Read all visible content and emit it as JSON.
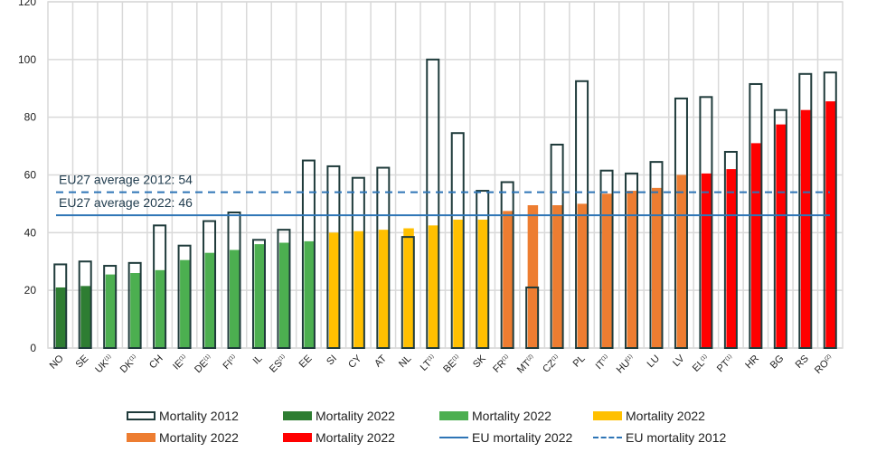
{
  "chart_data": {
    "type": "bar",
    "title": "",
    "xlabel": "",
    "ylabel": "",
    "ylim": [
      0,
      120
    ],
    "yticks": [
      "0",
      "20",
      "40",
      "60",
      "80",
      "100",
      "120"
    ],
    "grid": true,
    "categories": [
      "NO",
      "SE",
      "UK(1)",
      "DK(1)",
      "CH",
      "IE(1)",
      "DE(1)",
      "FI(1)",
      "IL",
      "ES(1)",
      "EE",
      "SI",
      "CY",
      "AT",
      "NL",
      "LT(1)",
      "BE(1)",
      "SK",
      "FR(1)",
      "MT(2)",
      "CZ(1)",
      "PL",
      "IT(1)",
      "HU(1)",
      "LU",
      "LV",
      "EL(1)",
      "PT(1)",
      "HR",
      "BG",
      "RS",
      "RO(2)"
    ],
    "category_labels": [
      {
        "base": "NO",
        "sup": ""
      },
      {
        "base": "SE",
        "sup": ""
      },
      {
        "base": "UK",
        "sup": "(1)"
      },
      {
        "base": "DK",
        "sup": "(1)"
      },
      {
        "base": "CH",
        "sup": ""
      },
      {
        "base": "IE",
        "sup": "(1)"
      },
      {
        "base": "DE",
        "sup": "(1)"
      },
      {
        "base": "FI",
        "sup": "(1)"
      },
      {
        "base": "IL",
        "sup": ""
      },
      {
        "base": "ES",
        "sup": "(1)"
      },
      {
        "base": "EE",
        "sup": ""
      },
      {
        "base": "SI",
        "sup": ""
      },
      {
        "base": "CY",
        "sup": ""
      },
      {
        "base": "AT",
        "sup": ""
      },
      {
        "base": "NL",
        "sup": ""
      },
      {
        "base": "LT",
        "sup": "(1)"
      },
      {
        "base": "BE",
        "sup": "(1)"
      },
      {
        "base": "SK",
        "sup": ""
      },
      {
        "base": "FR",
        "sup": "(1)"
      },
      {
        "base": "MT",
        "sup": "(2)"
      },
      {
        "base": "CZ",
        "sup": "(1)"
      },
      {
        "base": "PL",
        "sup": ""
      },
      {
        "base": "IT",
        "sup": "(1)"
      },
      {
        "base": "HU",
        "sup": "(1)"
      },
      {
        "base": "LU",
        "sup": ""
      },
      {
        "base": "LV",
        "sup": ""
      },
      {
        "base": "EL",
        "sup": "(1)"
      },
      {
        "base": "PT",
        "sup": "(1)"
      },
      {
        "base": "HR",
        "sup": ""
      },
      {
        "base": "BG",
        "sup": ""
      },
      {
        "base": "RS",
        "sup": ""
      },
      {
        "base": "RO",
        "sup": "(2)"
      }
    ],
    "series": [
      {
        "name": "Mortality 2012",
        "style": "outline",
        "values": [
          29,
          30,
          28.5,
          29.5,
          42.5,
          35.5,
          44,
          47,
          37.5,
          41,
          65,
          63,
          59,
          62.5,
          38.5,
          100,
          74.5,
          54.5,
          57.5,
          21,
          70.5,
          92.5,
          61.5,
          60.5,
          64.5,
          86.5,
          87,
          68,
          91.5,
          82.5,
          95,
          95.5
        ]
      },
      {
        "name": "Mortality 2022",
        "style": "fill",
        "values": [
          21,
          21.5,
          25.5,
          26,
          27,
          30.5,
          33,
          34,
          36,
          36.5,
          37,
          40,
          40.5,
          41,
          41.5,
          42.5,
          44.5,
          44.5,
          47.5,
          49.5,
          49.5,
          50,
          53.5,
          54.5,
          55.5,
          60,
          60.5,
          62,
          71,
          77.5,
          82.5,
          85.5
        ],
        "color_groups": [
          "dark-green",
          "dark-green",
          "green",
          "green",
          "green",
          "green",
          "green",
          "green",
          "green",
          "green",
          "green",
          "yellow",
          "yellow",
          "yellow",
          "yellow",
          "yellow",
          "yellow",
          "yellow",
          "orange",
          "orange",
          "orange",
          "orange",
          "orange",
          "orange",
          "orange",
          "orange",
          "red",
          "red",
          "red",
          "red",
          "red",
          "red"
        ]
      }
    ],
    "reference_lines": [
      {
        "name": "EU mortality 2022",
        "value": 46,
        "style": "solid",
        "label": "EU27 average 2022: 46"
      },
      {
        "name": "EU mortality 2012",
        "value": 54,
        "style": "dashed",
        "label": "EU27 average 2012: 54"
      }
    ],
    "colors": {
      "dark-green": "#2e7d32",
      "green": "#4caf50",
      "yellow": "#ffc000",
      "orange": "#ed7d31",
      "red": "#ff0000",
      "outline": "#1f3b3b",
      "reference": "#2e75b6",
      "grid": "#d9d9d9"
    },
    "legend": {
      "placement": "bottom",
      "rows": [
        [
          {
            "label": "Mortality 2012",
            "swatch": "outline"
          },
          {
            "label": "Mortality 2022",
            "swatch": "dark-green"
          },
          {
            "label": "Mortality 2022",
            "swatch": "green"
          },
          {
            "label": "Mortality 2022",
            "swatch": "yellow"
          }
        ],
        [
          {
            "label": "Mortality 2022",
            "swatch": "orange"
          },
          {
            "label": "Mortality 2022",
            "swatch": "red"
          },
          {
            "label": "EU mortality 2022",
            "swatch": "line"
          },
          {
            "label": "EU mortality 2012",
            "swatch": "dash"
          }
        ]
      ]
    }
  }
}
